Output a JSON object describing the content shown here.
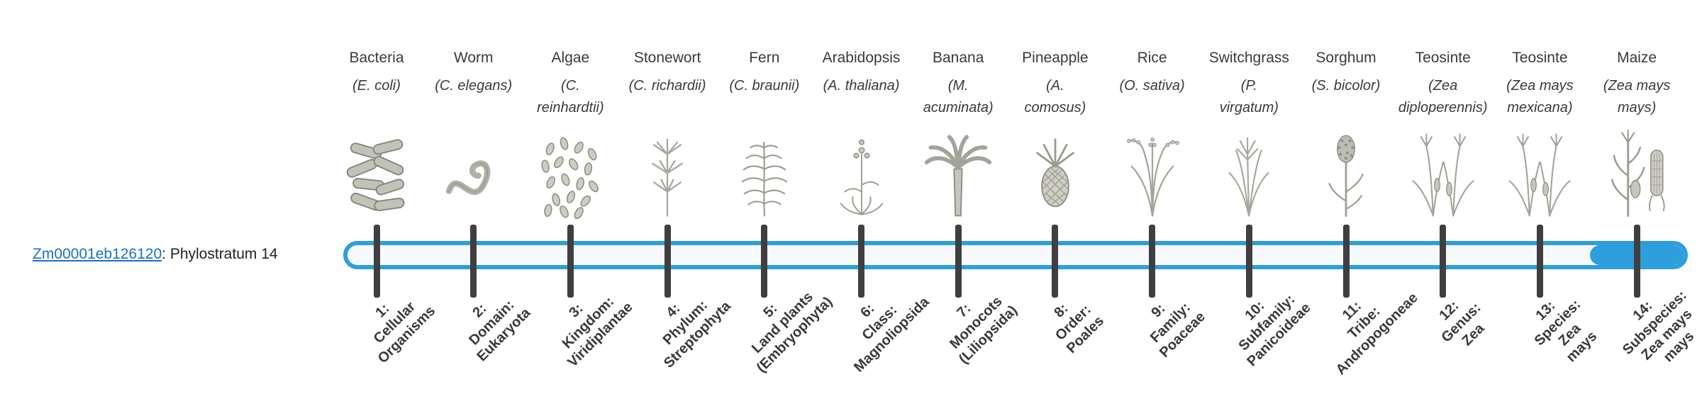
{
  "header": {
    "gene_id": "Zm00001eb126120",
    "gene_label_suffix": ": Phylostratum 14"
  },
  "timeline": {
    "current_stratum": 14,
    "stratum_count": 14
  },
  "colors": {
    "accent": "#2E9FDC",
    "bar_background": "#F6FAFE",
    "tick": "#3F3F3F",
    "text": "#3A3A3A",
    "link": "#1A6FC4"
  },
  "columns": [
    {
      "common_name": "Bacteria",
      "scientific_name": "(E. coli)",
      "icon": "bacteria-icon",
      "stratum_label": "1:\nCellular\nOrganisms"
    },
    {
      "common_name": "Worm",
      "scientific_name": "(C. elegans)",
      "icon": "worm-icon",
      "stratum_label": "2:\nDomain:\nEukaryota"
    },
    {
      "common_name": "Algae",
      "scientific_name": "(C.\nreinhardtii)",
      "icon": "algae-icon",
      "stratum_label": "3:\nKingdom:\nViridiplantae"
    },
    {
      "common_name": "Stonewort",
      "scientific_name": "(C. richardii)",
      "icon": "stonewort-icon",
      "stratum_label": "4:\nPhylum:\nStreptophyta"
    },
    {
      "common_name": "Fern",
      "scientific_name": "(C. braunii)",
      "icon": "fern-icon",
      "stratum_label": "5:\nLand plants\n(Embryophyta)"
    },
    {
      "common_name": "Arabidopsis",
      "scientific_name": "(A. thaliana)",
      "icon": "arabidopsis-icon",
      "stratum_label": "6:\nClass:\nMagnoliopsida"
    },
    {
      "common_name": "Banana",
      "scientific_name": "(M.\nacuminata)",
      "icon": "banana-icon",
      "stratum_label": "7:\nMonocots\n(Liliopsida)"
    },
    {
      "common_name": "Pineapple",
      "scientific_name": "(A.\ncomosus)",
      "icon": "pineapple-icon",
      "stratum_label": "8:\nOrder:\nPoales"
    },
    {
      "common_name": "Rice",
      "scientific_name": "(O. sativa)",
      "icon": "rice-icon",
      "stratum_label": "9:\nFamily:\nPoaceae"
    },
    {
      "common_name": "Switchgrass",
      "scientific_name": "(P.\nvirgatum)",
      "icon": "switchgrass-icon",
      "stratum_label": "10:\nSubfamily:\nPanicoideae"
    },
    {
      "common_name": "Sorghum",
      "scientific_name": "(S. bicolor)",
      "icon": "sorghum-icon",
      "stratum_label": "11:\nTribe:\nAndropogoneae"
    },
    {
      "common_name": "Teosinte",
      "scientific_name": "(Zea\ndiploperennis)",
      "icon": "teosinte-icon",
      "stratum_label": "12:\nGenus:\nZea"
    },
    {
      "common_name": "Teosinte",
      "scientific_name": "(Zea mays\nmexicana)",
      "icon": "teosinte-icon",
      "stratum_label": "13:\nSpecies:\nZea\nmays"
    },
    {
      "common_name": "Maize",
      "scientific_name": "(Zea mays\nmays)",
      "icon": "maize-icon",
      "stratum_label": "14:\nSubspecies:\nZea mays\nmays"
    }
  ]
}
